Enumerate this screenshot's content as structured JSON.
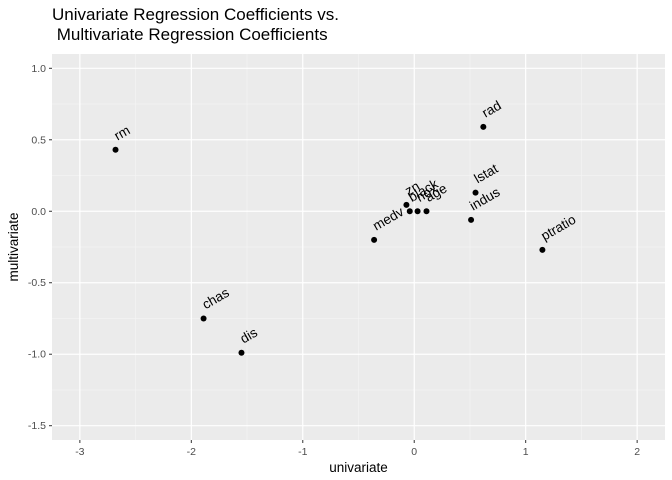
{
  "chart_data": {
    "type": "scatter",
    "title": "Univariate Regression Coefficients vs.\n Multivariate Regression Coefficients",
    "xlabel": "univariate",
    "ylabel": "multivariate",
    "xlim": [
      -3.25,
      2.25
    ],
    "ylim": [
      -1.6,
      1.1
    ],
    "x_ticks": [
      -3,
      -2,
      -1,
      0,
      1,
      2
    ],
    "x_tick_labels": [
      "-3",
      "-2",
      "-1",
      "0",
      "1",
      "2"
    ],
    "y_ticks": [
      1.0,
      0.5,
      0.0,
      -0.5,
      -1.0,
      -1.5
    ],
    "y_tick_labels": [
      "1.0",
      "0.5",
      "0.0",
      "-0.5",
      "-1.0",
      "-1.5"
    ],
    "grid": true,
    "points": [
      {
        "label": "rm",
        "x": -2.68,
        "y": 0.43
      },
      {
        "label": "chas",
        "x": -1.89,
        "y": -0.75
      },
      {
        "label": "dis",
        "x": -1.55,
        "y": -0.99
      },
      {
        "label": "medv",
        "x": -0.36,
        "y": -0.2
      },
      {
        "label": "zn",
        "x": -0.07,
        "y": 0.045
      },
      {
        "label": "black",
        "x": -0.04,
        "y": 0.0
      },
      {
        "label": "nox",
        "x": 0.03,
        "y": 0.0
      },
      {
        "label": "age",
        "x": 0.11,
        "y": 0.0
      },
      {
        "label": "indus",
        "x": 0.51,
        "y": -0.06
      },
      {
        "label": "lstat",
        "x": 0.55,
        "y": 0.13
      },
      {
        "label": "rad",
        "x": 0.62,
        "y": 0.59
      },
      {
        "label": "ptratio",
        "x": 1.15,
        "y": -0.27
      }
    ]
  }
}
